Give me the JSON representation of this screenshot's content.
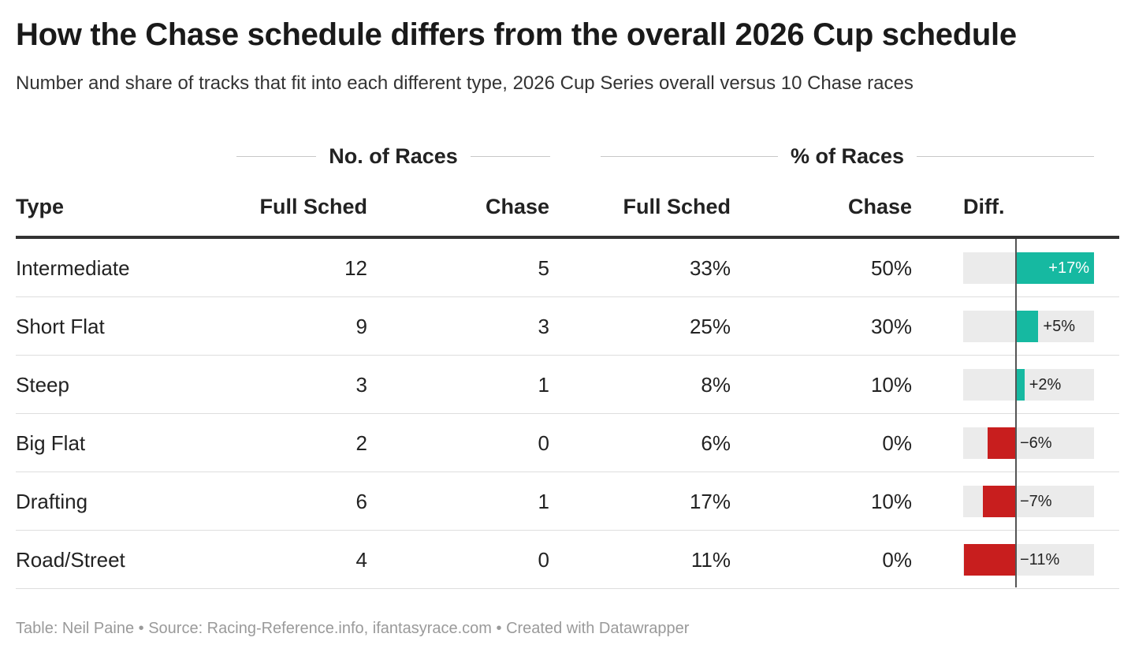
{
  "title": "How the Chase schedule differs from the overall 2026 Cup schedule",
  "subtitle": "Number and share of tracks that fit into each different type, 2026 Cup Series overall versus 10 Chase races",
  "groups": {
    "races": "No. of Races",
    "pct": "% of Races"
  },
  "columns": {
    "type": "Type",
    "full_sched_n": "Full Sched",
    "chase_n": "Chase",
    "full_sched_pct": "Full Sched",
    "chase_pct": "Chase",
    "diff": "Diff."
  },
  "colors": {
    "positive": "#16b9a1",
    "negative": "#c81e1e"
  },
  "chart_data": {
    "type": "table",
    "diff_range": [
      -11,
      17
    ],
    "rows": [
      {
        "type": "Intermediate",
        "full_n": "12",
        "chase_n": "5",
        "full_pct": "33%",
        "chase_pct": "50%",
        "diff_label": "+17%",
        "diff": 17
      },
      {
        "type": "Short Flat",
        "full_n": "9",
        "chase_n": "3",
        "full_pct": "25%",
        "chase_pct": "30%",
        "diff_label": "+5%",
        "diff": 5
      },
      {
        "type": "Steep",
        "full_n": "3",
        "chase_n": "1",
        "full_pct": "8%",
        "chase_pct": "10%",
        "diff_label": "+2%",
        "diff": 2
      },
      {
        "type": "Big Flat",
        "full_n": "2",
        "chase_n": "0",
        "full_pct": "6%",
        "chase_pct": "0%",
        "diff_label": "−6%",
        "diff": -6
      },
      {
        "type": "Drafting",
        "full_n": "6",
        "chase_n": "1",
        "full_pct": "17%",
        "chase_pct": "10%",
        "diff_label": "−7%",
        "diff": -7
      },
      {
        "type": "Road/Street",
        "full_n": "4",
        "chase_n": "0",
        "full_pct": "11%",
        "chase_pct": "0%",
        "diff_label": "−11%",
        "diff": -11
      }
    ]
  },
  "footer": "Table: Neil Paine • Source: Racing-Reference.info, ifantasyrace.com • Created with Datawrapper"
}
